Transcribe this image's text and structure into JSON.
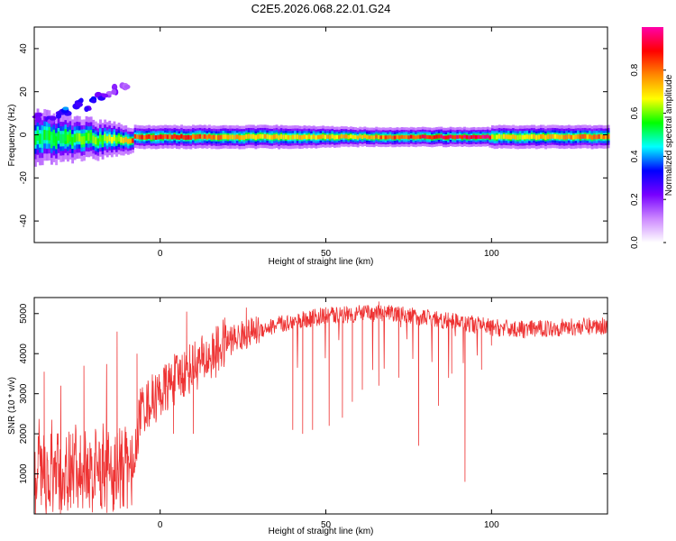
{
  "title": "C2E5.2026.068.22.01.G24",
  "chart_data": [
    {
      "type": "heatmap",
      "xlabel": "Height of straight line (km)",
      "ylabel": "Frequency (Hz)",
      "xlim": [
        -38,
        135
      ],
      "ylim": [
        -50,
        50
      ],
      "xticks": [
        0,
        50,
        100
      ],
      "yticks": [
        -40,
        -20,
        0,
        20,
        40
      ],
      "colorbar": {
        "label": "Normalized spectral amplitude",
        "range": [
          0.0,
          1.0
        ],
        "ticks": [
          0.0,
          0.2,
          0.4,
          0.6,
          0.8
        ],
        "colors": [
          "#ffffff",
          "#cc88ff",
          "#7700ff",
          "#0000ff",
          "#00ffff",
          "#00ff00",
          "#ffff00",
          "#ff8800",
          "#ff0000",
          "#ff00aa"
        ]
      },
      "description_note": "Dominant frequency band near -2 Hz across all heights; scattered components at 10–23 Hz below -10 km",
      "band": [
        {
          "x": -38,
          "f": -1,
          "w": 7,
          "a": 0.55
        },
        {
          "x": -30,
          "f": -2,
          "w": 6,
          "a": 0.6
        },
        {
          "x": -20,
          "f": -2,
          "w": 5,
          "a": 0.65
        },
        {
          "x": -12,
          "f": -3,
          "w": 4,
          "a": 0.7
        },
        {
          "x": -8,
          "f": -1,
          "w": 3,
          "a": 0.9
        },
        {
          "x": 0,
          "f": -1,
          "w": 3,
          "a": 0.92
        },
        {
          "x": 10,
          "f": -1,
          "w": 3,
          "a": 0.9
        },
        {
          "x": 20,
          "f": -1,
          "w": 3,
          "a": 0.8
        },
        {
          "x": 40,
          "f": -1,
          "w": 3,
          "a": 0.75
        },
        {
          "x": 60,
          "f": -1,
          "w": 2.5,
          "a": 0.8
        },
        {
          "x": 80,
          "f": -1,
          "w": 2.5,
          "a": 0.95
        },
        {
          "x": 99,
          "f": -1,
          "w": 2.5,
          "a": 1.0
        },
        {
          "x": 100,
          "f": -1,
          "w": 3,
          "a": 0.7
        },
        {
          "x": 120,
          "f": -1,
          "w": 3,
          "a": 0.8
        },
        {
          "x": 135,
          "f": -1,
          "w": 3,
          "a": 0.85
        }
      ],
      "scatter_components": [
        {
          "x": -37,
          "f": 8,
          "a": 0.3
        },
        {
          "x": -33,
          "f": 7,
          "a": 0.25
        },
        {
          "x": -30,
          "f": 10,
          "a": 0.3
        },
        {
          "x": -28,
          "f": 11,
          "a": 0.35
        },
        {
          "x": -25,
          "f": 14,
          "a": 0.35
        },
        {
          "x": -24,
          "f": 15,
          "a": 0.3
        },
        {
          "x": -22,
          "f": 13,
          "a": 0.25
        },
        {
          "x": -20,
          "f": 16,
          "a": 0.3
        },
        {
          "x": -18,
          "f": 18,
          "a": 0.25
        },
        {
          "x": -16,
          "f": 19,
          "a": 0.2
        },
        {
          "x": -14,
          "f": 21,
          "a": 0.2
        },
        {
          "x": -11,
          "f": 22,
          "a": 0.15
        },
        {
          "x": -10,
          "f": 23,
          "a": 0.15
        }
      ]
    },
    {
      "type": "line",
      "xlabel": "Height of straight line (km)",
      "ylabel": "SNR (10 * v/v)",
      "xlim": [
        -38,
        135
      ],
      "ylim": [
        0,
        5400
      ],
      "xticks": [
        0,
        50,
        100
      ],
      "yticks": [
        1000,
        2000,
        3000,
        4000,
        5000
      ],
      "color": "#ee3333",
      "series": [
        {
          "name": "SNR",
          "trend": [
            [
              -38,
              800
            ],
            [
              -30,
              1000
            ],
            [
              -20,
              1050
            ],
            [
              -15,
              1100
            ],
            [
              -8,
              1100
            ],
            [
              -6,
              2600
            ],
            [
              0,
              3000
            ],
            [
              5,
              3400
            ],
            [
              10,
              3700
            ],
            [
              15,
              3900
            ],
            [
              20,
              4300
            ],
            [
              30,
              4600
            ],
            [
              40,
              4800
            ],
            [
              50,
              4950
            ],
            [
              60,
              5000
            ],
            [
              70,
              5000
            ],
            [
              80,
              4900
            ],
            [
              90,
              4800
            ],
            [
              100,
              4650
            ],
            [
              110,
              4600
            ],
            [
              120,
              4650
            ],
            [
              135,
              4700
            ]
          ],
          "dips": [
            [
              -36,
              450
            ],
            [
              -27,
              150
            ],
            [
              -18,
              200
            ],
            [
              -14,
              100
            ],
            [
              -7,
              1800
            ],
            [
              4,
              2000
            ],
            [
              10,
              2000
            ],
            [
              40,
              2100
            ],
            [
              43,
              2000
            ],
            [
              46,
              2100
            ],
            [
              51,
              2200
            ],
            [
              55,
              2400
            ],
            [
              58,
              2800
            ],
            [
              61,
              3100
            ],
            [
              66,
              3200
            ],
            [
              72,
              3400
            ],
            [
              78,
              1700
            ],
            [
              84,
              2700
            ],
            [
              88,
              3500
            ],
            [
              92,
              800
            ],
            [
              97,
              3600
            ],
            [
              100,
              4200
            ]
          ],
          "spikes": [
            [
              -35,
              3550
            ],
            [
              -30,
              3200
            ],
            [
              -23,
              3700
            ],
            [
              -13,
              4550
            ],
            [
              -7,
              4000
            ],
            [
              8,
              5050
            ],
            [
              26,
              5150
            ],
            [
              66,
              5300
            ]
          ]
        }
      ]
    }
  ]
}
